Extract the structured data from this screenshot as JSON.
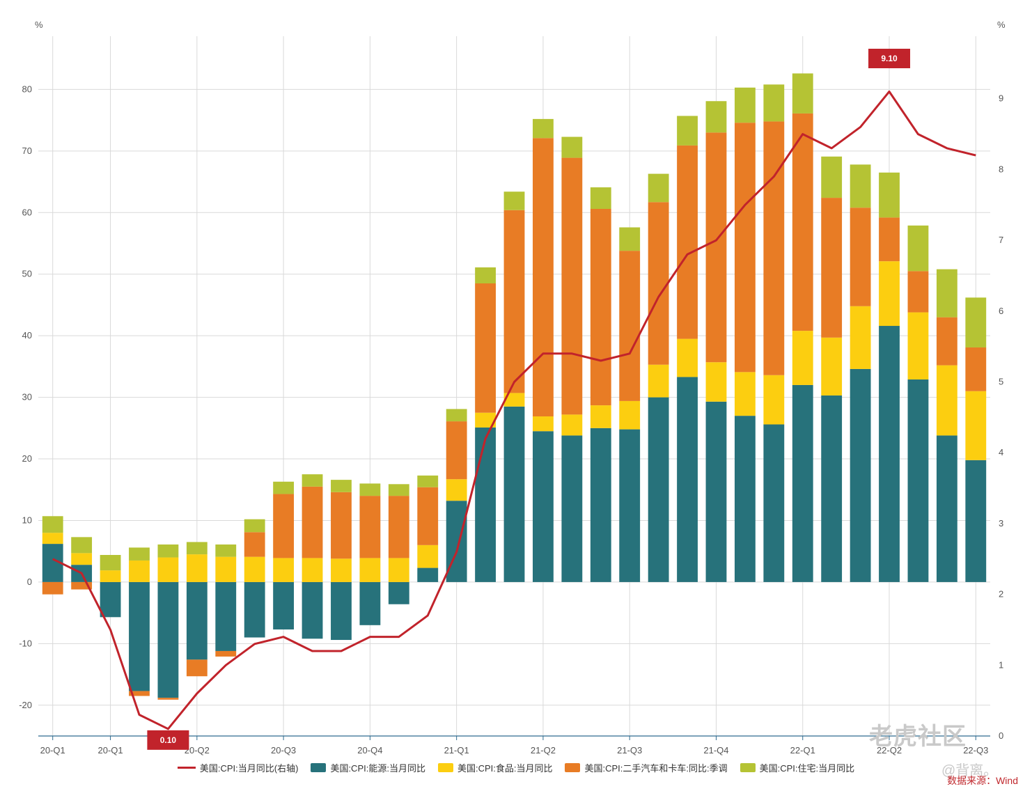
{
  "chart_data": {
    "type": "bar",
    "stacked": true,
    "left_axis": {
      "unit": "%",
      "min": -25,
      "max": 90,
      "ticks": [
        -20,
        -10,
        0,
        10,
        20,
        30,
        40,
        50,
        60,
        70,
        80
      ]
    },
    "right_axis": {
      "unit": "%",
      "min": 0,
      "max": 10,
      "ticks": [
        0,
        1,
        2,
        3,
        4,
        5,
        6,
        7,
        8,
        9
      ]
    },
    "x_tick_labels": [
      "20-Q1",
      "20-Q1",
      "20-Q2",
      "20-Q3",
      "20-Q4",
      "21-Q1",
      "21-Q2",
      "21-Q3",
      "21-Q4",
      "22-Q1",
      "22-Q2",
      "22-Q3"
    ],
    "x_tick_months": [
      0,
      2,
      5,
      8,
      11,
      14,
      17,
      20,
      23,
      26,
      29,
      32
    ],
    "months": 33,
    "series": [
      {
        "name": "美国:CPI:能源:当月同比",
        "color": "#27727b",
        "values": [
          6.2,
          2.8,
          -5.7,
          -17.7,
          -18.8,
          -12.6,
          -11.2,
          -9.0,
          -7.7,
          -9.2,
          -9.4,
          -7.0,
          -3.6,
          2.3,
          13.2,
          25.1,
          28.5,
          24.5,
          23.8,
          25.0,
          24.8,
          30.0,
          33.3,
          29.3,
          27.0,
          25.6,
          32.0,
          30.3,
          34.6,
          41.6,
          32.9,
          23.8,
          19.8
        ]
      },
      {
        "name": "美国:CPI:食品:当月同比",
        "color": "#fcce10",
        "values": [
          1.8,
          1.9,
          1.9,
          3.5,
          4.0,
          4.5,
          4.1,
          4.1,
          3.9,
          3.9,
          3.8,
          3.9,
          3.9,
          3.7,
          3.5,
          2.4,
          2.2,
          2.4,
          3.4,
          3.7,
          4.6,
          5.3,
          6.2,
          6.4,
          7.1,
          8.0,
          8.8,
          9.4,
          10.2,
          10.5,
          10.9,
          11.4,
          11.2
        ]
      },
      {
        "name": "美国:CPI:二手汽车和卡车:同比:季调",
        "color": "#e87c25",
        "values": [
          -2.0,
          -1.2,
          0,
          -0.8,
          -0.3,
          -2.7,
          -0.9,
          4.0,
          10.4,
          11.6,
          10.8,
          10.1,
          10.1,
          9.4,
          9.4,
          21.0,
          29.7,
          45.2,
          41.7,
          31.9,
          24.4,
          26.4,
          31.4,
          37.3,
          40.5,
          41.2,
          35.3,
          22.7,
          16.0,
          7.1,
          6.7,
          7.8,
          7.1
        ]
      },
      {
        "name": "美国:CPI:住宅:当月同比",
        "color": "#b5c334",
        "values": [
          2.7,
          2.6,
          2.5,
          2.1,
          2.1,
          2.0,
          2.0,
          2.1,
          2.0,
          2.0,
          2.0,
          2.0,
          1.9,
          1.9,
          2.0,
          2.6,
          3.0,
          3.1,
          3.4,
          3.5,
          3.8,
          4.6,
          4.8,
          5.1,
          5.7,
          6.0,
          6.5,
          6.7,
          7.0,
          7.3,
          7.4,
          7.8,
          8.1
        ]
      }
    ],
    "line": {
      "name": "美国:CPI:当月同比(右轴)",
      "color": "#c1232b",
      "axis": "right",
      "values": [
        2.5,
        2.3,
        1.5,
        0.3,
        0.1,
        0.6,
        1.0,
        1.3,
        1.4,
        1.2,
        1.2,
        1.4,
        1.4,
        1.7,
        2.6,
        4.2,
        5.0,
        5.4,
        5.4,
        5.3,
        5.4,
        6.2,
        6.8,
        7.0,
        7.5,
        7.9,
        8.5,
        8.3,
        8.6,
        9.1,
        8.5,
        8.3,
        8.2
      ]
    },
    "annotations": [
      {
        "month": 4,
        "text": "0.10",
        "placement": "below"
      },
      {
        "month": 29,
        "text": "9.10",
        "placement": "above"
      }
    ]
  },
  "source_text": "数据来源：Wind",
  "watermark_text": "老虎社区",
  "watermark_handle": "@背离。"
}
